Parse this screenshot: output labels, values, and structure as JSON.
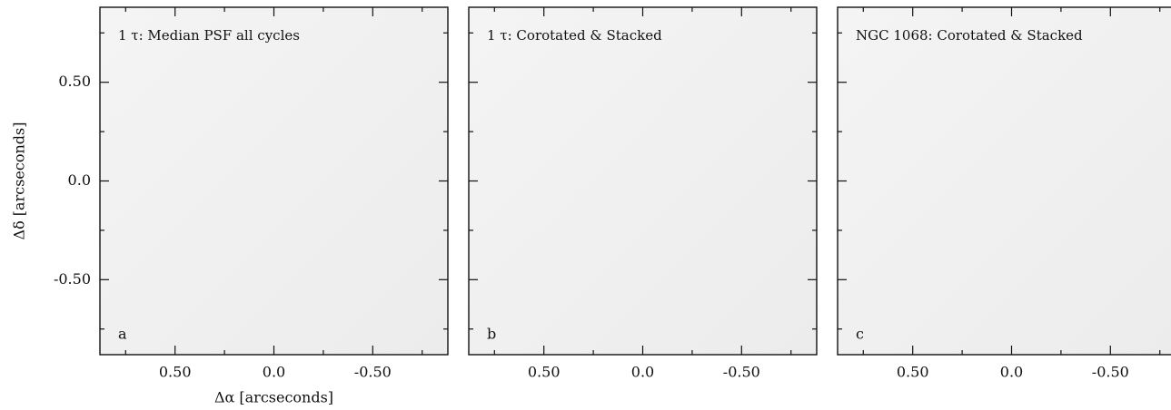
{
  "chart_data": [
    {
      "type": "image",
      "title": "1 τ: Median PSF all cycles",
      "panel_label": "a",
      "xlabel": "Δα [arcseconds]",
      "ylabel": "Δδ [arcseconds]",
      "xlim": [
        0.88,
        -0.88
      ],
      "ylim": [
        -0.88,
        0.88
      ],
      "xticks": [
        {
          "value": 0.5,
          "label": "0.50"
        },
        {
          "value": 0,
          "label": "0.0"
        },
        {
          "value": -0.5,
          "label": "-0.50"
        }
      ],
      "yticks": [
        {
          "value": 0.5,
          "label": "0.50"
        },
        {
          "value": 0,
          "label": "0.0"
        },
        {
          "value": -0.5,
          "label": "-0.50"
        }
      ],
      "minor_ticks": [
        0.75,
        0.25,
        -0.25,
        -0.75
      ],
      "show_ytick_labels": true
    },
    {
      "type": "image",
      "title": "1 τ: Corotated & Stacked",
      "panel_label": "b",
      "xlim": [
        0.88,
        -0.88
      ],
      "ylim": [
        -0.88,
        0.88
      ],
      "xticks": [
        {
          "value": 0.5,
          "label": "0.50"
        },
        {
          "value": 0,
          "label": "0.0"
        },
        {
          "value": -0.5,
          "label": "-0.50"
        }
      ],
      "yticks": [
        0.5,
        0,
        -0.5
      ],
      "minor_ticks": [
        0.75,
        0.25,
        -0.25,
        -0.75
      ],
      "show_ytick_labels": false
    },
    {
      "type": "image",
      "title": "NGC 1068: Corotated & Stacked",
      "panel_label": "c",
      "xlim": [
        0.88,
        -0.88
      ],
      "ylim": [
        -0.88,
        0.88
      ],
      "xticks": [
        {
          "value": 0.5,
          "label": "0.50"
        },
        {
          "value": 0,
          "label": "0.0"
        },
        {
          "value": -0.5,
          "label": "-0.50"
        }
      ],
      "yticks": [
        0.5,
        0,
        -0.5
      ],
      "minor_ticks": [
        0.75,
        0.25,
        -0.25,
        -0.75
      ],
      "show_ytick_labels": false
    }
  ]
}
